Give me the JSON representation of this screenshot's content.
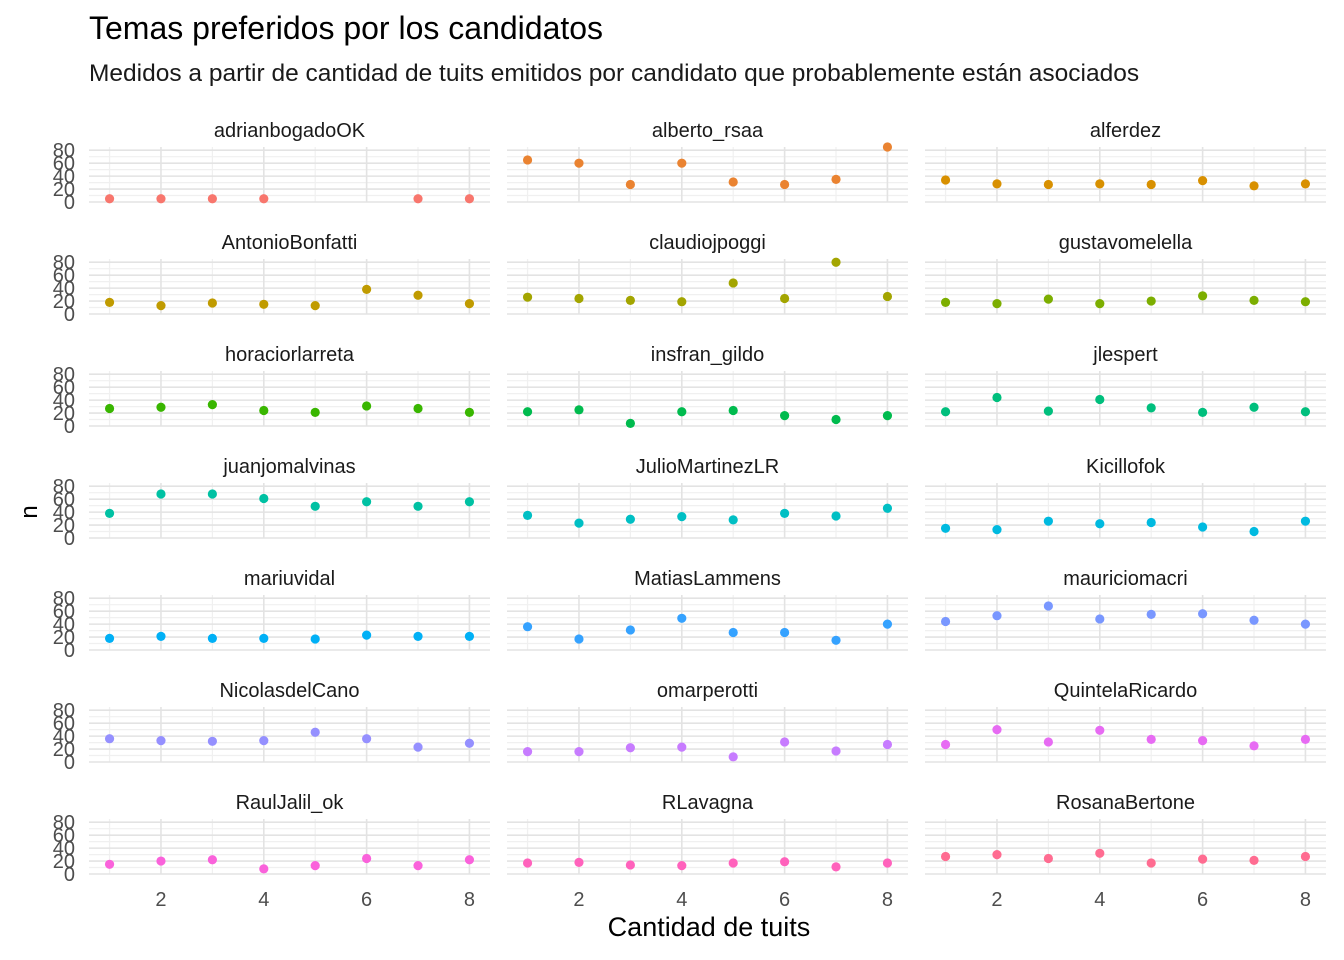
{
  "chart_data": {
    "type": "scatter",
    "title": "Temas preferidos por los candidatos",
    "subtitle": "Medidos a partir de cantidad de tuits emitidos por candidato que probablemente están asociados",
    "xlabel": "Cantidad de tuits",
    "ylabel": "n",
    "xlim": [
      0.6,
      8.4
    ],
    "ylim": [
      0,
      85
    ],
    "x_ticks": [
      2,
      4,
      6,
      8
    ],
    "y_ticks": [
      0,
      20,
      40,
      60,
      80
    ],
    "grid": true,
    "legend": "none",
    "panels": [
      {
        "name": "adrianbogadoOK",
        "color": "#F8766D",
        "points": [
          [
            1,
            5
          ],
          [
            2,
            5
          ],
          [
            3,
            5
          ],
          [
            4,
            5
          ],
          [
            7,
            5
          ],
          [
            8,
            5
          ]
        ]
      },
      {
        "name": "alberto_rsaa",
        "color": "#EA8331",
        "points": [
          [
            1,
            65
          ],
          [
            2,
            60
          ],
          [
            3,
            27
          ],
          [
            4,
            60
          ],
          [
            5,
            31
          ],
          [
            6,
            27
          ],
          [
            7,
            35
          ],
          [
            8,
            85
          ]
        ]
      },
      {
        "name": "alferdez",
        "color": "#D89000",
        "points": [
          [
            1,
            34
          ],
          [
            2,
            28
          ],
          [
            3,
            27
          ],
          [
            4,
            28
          ],
          [
            5,
            27
          ],
          [
            6,
            33
          ],
          [
            7,
            25
          ],
          [
            8,
            28
          ]
        ]
      },
      {
        "name": "AntonioBonfatti",
        "color": "#C09B00",
        "points": [
          [
            1,
            18
          ],
          [
            2,
            13
          ],
          [
            3,
            17
          ],
          [
            4,
            15
          ],
          [
            5,
            13
          ],
          [
            6,
            38
          ],
          [
            7,
            29
          ],
          [
            8,
            16
          ]
        ]
      },
      {
        "name": "claudiojpoggi",
        "color": "#A3A500",
        "points": [
          [
            1,
            26
          ],
          [
            2,
            24
          ],
          [
            3,
            21
          ],
          [
            4,
            19
          ],
          [
            5,
            48
          ],
          [
            6,
            24
          ],
          [
            7,
            80
          ],
          [
            8,
            27
          ]
        ]
      },
      {
        "name": "gustavomelella",
        "color": "#7CAE00",
        "points": [
          [
            1,
            18
          ],
          [
            2,
            16
          ],
          [
            3,
            23
          ],
          [
            4,
            16
          ],
          [
            5,
            20
          ],
          [
            6,
            28
          ],
          [
            7,
            21
          ],
          [
            8,
            19
          ]
        ]
      },
      {
        "name": "horaciorlarreta",
        "color": "#39B600",
        "points": [
          [
            1,
            27
          ],
          [
            2,
            29
          ],
          [
            3,
            33
          ],
          [
            4,
            24
          ],
          [
            5,
            21
          ],
          [
            6,
            31
          ],
          [
            7,
            27
          ],
          [
            8,
            21
          ]
        ]
      },
      {
        "name": "insfran_gildo",
        "color": "#00BB4E",
        "points": [
          [
            1,
            22
          ],
          [
            2,
            25
          ],
          [
            3,
            4
          ],
          [
            4,
            22
          ],
          [
            5,
            24
          ],
          [
            6,
            16
          ],
          [
            7,
            10
          ],
          [
            8,
            16
          ]
        ]
      },
      {
        "name": "jlespert",
        "color": "#00BF7D",
        "points": [
          [
            1,
            22
          ],
          [
            2,
            44
          ],
          [
            3,
            23
          ],
          [
            4,
            41
          ],
          [
            5,
            28
          ],
          [
            6,
            21
          ],
          [
            7,
            29
          ],
          [
            8,
            22
          ]
        ]
      },
      {
        "name": "juanjomalvinas",
        "color": "#00C1A3",
        "points": [
          [
            1,
            38
          ],
          [
            2,
            68
          ],
          [
            3,
            68
          ],
          [
            4,
            61
          ],
          [
            5,
            49
          ],
          [
            6,
            56
          ],
          [
            7,
            49
          ],
          [
            8,
            56
          ]
        ]
      },
      {
        "name": "JulioMartinezLR",
        "color": "#00BFC4",
        "points": [
          [
            1,
            35
          ],
          [
            2,
            23
          ],
          [
            3,
            29
          ],
          [
            4,
            33
          ],
          [
            5,
            28
          ],
          [
            6,
            38
          ],
          [
            7,
            34
          ],
          [
            8,
            46
          ]
        ]
      },
      {
        "name": "Kicillofok",
        "color": "#00BAE0",
        "points": [
          [
            1,
            15
          ],
          [
            2,
            13
          ],
          [
            3,
            26
          ],
          [
            4,
            22
          ],
          [
            5,
            24
          ],
          [
            6,
            17
          ],
          [
            7,
            10
          ],
          [
            8,
            26
          ]
        ]
      },
      {
        "name": "mariuvidal",
        "color": "#00B0F6",
        "points": [
          [
            1,
            18
          ],
          [
            2,
            21
          ],
          [
            3,
            18
          ],
          [
            4,
            18
          ],
          [
            5,
            17
          ],
          [
            6,
            23
          ],
          [
            7,
            21
          ],
          [
            8,
            21
          ]
        ]
      },
      {
        "name": "MatiasLammens",
        "color": "#35A2FF",
        "points": [
          [
            1,
            36
          ],
          [
            2,
            17
          ],
          [
            3,
            31
          ],
          [
            4,
            49
          ],
          [
            5,
            27
          ],
          [
            6,
            27
          ],
          [
            7,
            15
          ],
          [
            8,
            40
          ]
        ]
      },
      {
        "name": "mauriciomacri",
        "color": "#7997FF",
        "points": [
          [
            1,
            44
          ],
          [
            2,
            53
          ],
          [
            3,
            68
          ],
          [
            4,
            48
          ],
          [
            5,
            55
          ],
          [
            6,
            56
          ],
          [
            7,
            46
          ],
          [
            8,
            40
          ]
        ]
      },
      {
        "name": "NicolasdelCano",
        "color": "#9590FF",
        "points": [
          [
            1,
            36
          ],
          [
            2,
            33
          ],
          [
            3,
            32
          ],
          [
            4,
            33
          ],
          [
            5,
            46
          ],
          [
            6,
            36
          ],
          [
            7,
            23
          ],
          [
            8,
            29
          ]
        ]
      },
      {
        "name": "omarperotti",
        "color": "#C77CFF",
        "points": [
          [
            1,
            16
          ],
          [
            2,
            16
          ],
          [
            3,
            22
          ],
          [
            4,
            23
          ],
          [
            5,
            8
          ],
          [
            6,
            31
          ],
          [
            7,
            17
          ],
          [
            8,
            27
          ]
        ]
      },
      {
        "name": "QuintelaRicardo",
        "color": "#E76BF3",
        "points": [
          [
            1,
            27
          ],
          [
            2,
            50
          ],
          [
            3,
            31
          ],
          [
            4,
            49
          ],
          [
            5,
            35
          ],
          [
            6,
            33
          ],
          [
            7,
            25
          ],
          [
            8,
            35
          ]
        ]
      },
      {
        "name": "RaulJalil_ok",
        "color": "#FA62DB",
        "points": [
          [
            1,
            15
          ],
          [
            2,
            20
          ],
          [
            3,
            22
          ],
          [
            4,
            8
          ],
          [
            5,
            13
          ],
          [
            6,
            24
          ],
          [
            7,
            13
          ],
          [
            8,
            22
          ]
        ]
      },
      {
        "name": "RLavagna",
        "color": "#FF62BC",
        "points": [
          [
            1,
            17
          ],
          [
            2,
            18
          ],
          [
            3,
            14
          ],
          [
            4,
            13
          ],
          [
            5,
            17
          ],
          [
            6,
            19
          ],
          [
            7,
            11
          ],
          [
            8,
            17
          ]
        ]
      },
      {
        "name": "RosanaBertone",
        "color": "#FF6C91",
        "points": [
          [
            1,
            27
          ],
          [
            2,
            30
          ],
          [
            3,
            24
          ],
          [
            4,
            32
          ],
          [
            5,
            17
          ],
          [
            6,
            23
          ],
          [
            7,
            21
          ],
          [
            8,
            27
          ]
        ]
      }
    ]
  }
}
